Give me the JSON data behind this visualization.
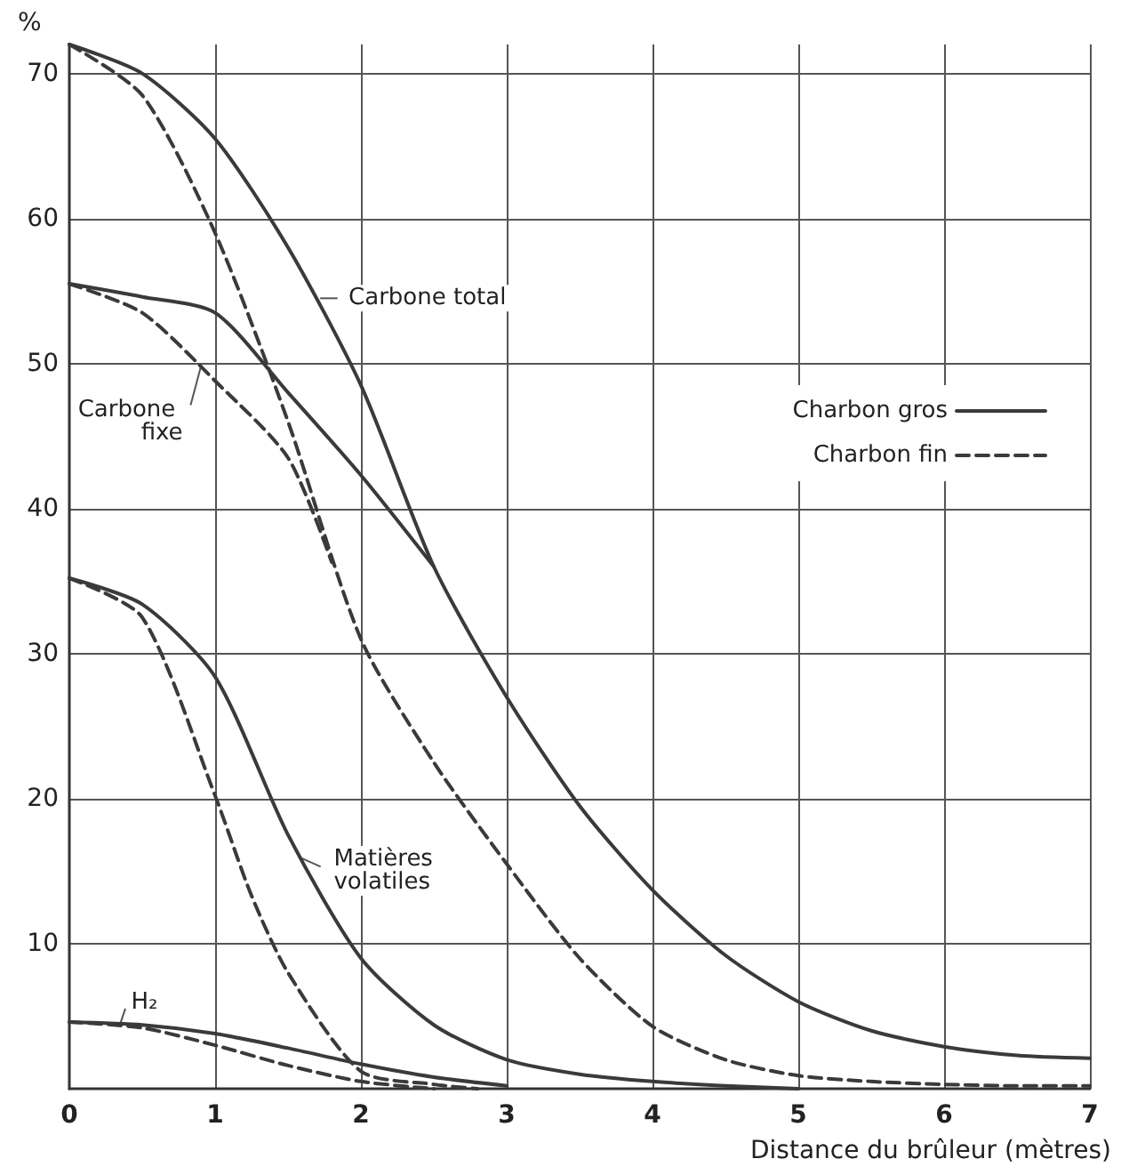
{
  "chart_data": {
    "type": "line",
    "ylabel": "%",
    "xlabel": "Distance du brûleur (mètres)",
    "xlim": [
      0,
      7
    ],
    "xticks": [
      0,
      1,
      2,
      3,
      4,
      5,
      6,
      7
    ],
    "ylim": [
      0,
      72
    ],
    "yticks": [
      10,
      20,
      30,
      40,
      50,
      60,
      70
    ],
    "grid": true,
    "legend": "right",
    "marker": "none",
    "series": [
      {
        "name": "Charbon gros",
        "color": "#3a3a3a",
        "line_style": "solid",
        "x": [
          0,
          0.5,
          1,
          1.5,
          2,
          2.5,
          3,
          3.5,
          4,
          4.5,
          5,
          5.5,
          6,
          6.5,
          7
        ],
        "values": [
          72,
          70,
          65.5,
          58,
          48.5,
          36,
          27,
          19.5,
          13.7,
          9.2,
          6,
          4,
          2.9,
          2.3,
          2.1
        ]
      },
      {
        "name": "Charbon fin",
        "color": "#3a3a3a",
        "line_style": "dashed",
        "x": [
          0,
          0.5,
          1,
          1.5,
          2,
          2.5,
          3,
          3.5,
          4,
          4.5,
          5,
          5.5,
          6,
          6.5,
          7
        ],
        "values": [
          72,
          68.5,
          59,
          46,
          31,
          22.5,
          15.5,
          9,
          4.3,
          2,
          0.9,
          0.5,
          0.3,
          0.2,
          0.2
        ]
      },
      {
        "color": "#3a3a3a",
        "line_style": "solid",
        "x": [
          0,
          0.5,
          1,
          1.5,
          2,
          2.5
        ],
        "values": [
          55.5,
          54.6,
          53.5,
          48,
          42.3,
          36
        ]
      },
      {
        "color": "#3a3a3a",
        "line_style": "dashed",
        "x": [
          0,
          0.5,
          1,
          1.5,
          1.8
        ],
        "values": [
          55.5,
          53.5,
          48.8,
          43.5,
          36.3
        ]
      },
      {
        "color": "#3a3a3a",
        "line_style": "solid",
        "x": [
          0,
          0.5,
          1,
          1.5,
          2,
          2.5,
          3,
          3.5,
          4,
          4.5,
          5
        ],
        "values": [
          35.2,
          33.4,
          28.4,
          17.5,
          9,
          4.4,
          2,
          1,
          0.5,
          0.2,
          0
        ]
      },
      {
        "color": "#3a3a3a",
        "line_style": "dashed",
        "x": [
          0,
          0.5,
          1,
          1.25,
          1.5,
          2,
          2.5,
          2.8
        ],
        "values": [
          35.2,
          32.5,
          20.2,
          13.3,
          8,
          1.2,
          0.3,
          0
        ]
      },
      {
        "color": "#3a3a3a",
        "line_style": "solid",
        "x": [
          0,
          0.5,
          1,
          1.5,
          2,
          2.5,
          3
        ],
        "values": [
          4.6,
          4.4,
          3.8,
          2.8,
          1.7,
          0.8,
          0.2
        ]
      },
      {
        "color": "#3a3a3a",
        "line_style": "dashed",
        "x": [
          0,
          0.5,
          1,
          1.5,
          2,
          2.5
        ],
        "values": [
          4.6,
          4.2,
          3,
          1.6,
          0.5,
          0
        ]
      }
    ],
    "annotations": [
      {
        "text": "Carbone total",
        "x": 1.72,
        "y": 54.5
      },
      {
        "text": "Carbone fixe",
        "x": 0.9,
        "y": 49.7
      },
      {
        "text": "Matières volatiles",
        "x": 1.57,
        "y": 16
      },
      {
        "text": "H₂",
        "x": 0.35,
        "y": 4.5
      }
    ]
  }
}
